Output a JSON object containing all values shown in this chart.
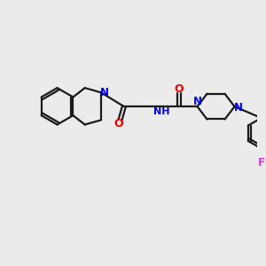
{
  "bg_color": "#ebebeb",
  "bond_color": "#1a1a1a",
  "N_color": "#0000ee",
  "O_color": "#ee0000",
  "F_color": "#cc44cc",
  "line_width": 1.6,
  "fig_size": [
    3.0,
    3.0
  ],
  "dpi": 100,
  "xlim": [
    0,
    10
  ],
  "ylim": [
    0,
    10
  ]
}
